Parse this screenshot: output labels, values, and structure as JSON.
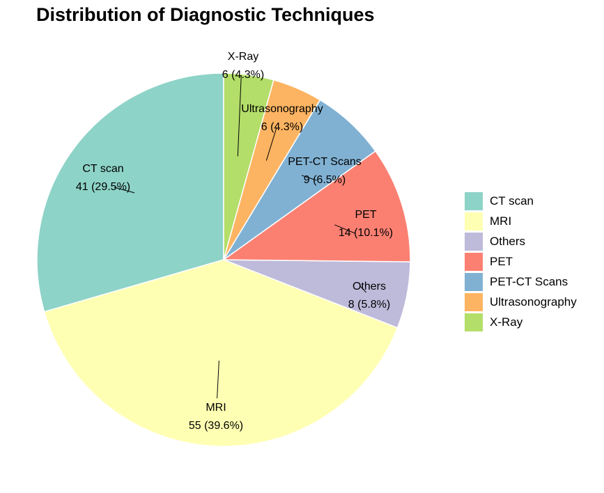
{
  "chart_data": {
    "type": "pie",
    "title": "Distribution of Diagnostic Techniques",
    "categories": [
      "CT scan",
      "MRI",
      "Others",
      "PET",
      "PET-CT Scans",
      "Ultrasonography",
      "X-Ray"
    ],
    "values": [
      41,
      55,
      8,
      14,
      9,
      6,
      6
    ],
    "percentages": [
      "29.5%",
      "39.6%",
      "5.8%",
      "10.1%",
      "6.5%",
      "4.3%",
      "4.3%"
    ],
    "slice_labels": [
      {
        "name": "CT scan",
        "value_text": "41 (29.5%)"
      },
      {
        "name": "MRI",
        "value_text": "55 (39.6%)"
      },
      {
        "name": "Others",
        "value_text": "8 (5.8%)"
      },
      {
        "name": "PET",
        "value_text": "14 (10.1%)"
      },
      {
        "name": "PET-CT Scans",
        "value_text": "9 (6.5%)"
      },
      {
        "name": "Ultrasonography",
        "value_text": "6 (4.3%)"
      },
      {
        "name": "X-Ray",
        "value_text": "6 (4.3%)"
      }
    ],
    "colors": [
      "#8DD3C7",
      "#FFFFB3",
      "#BEBADA",
      "#FB8072",
      "#80B1D3",
      "#FDB462",
      "#B3DE69"
    ],
    "legend_position": "right",
    "start": "12 o'clock",
    "direction": "counterclockwise"
  }
}
